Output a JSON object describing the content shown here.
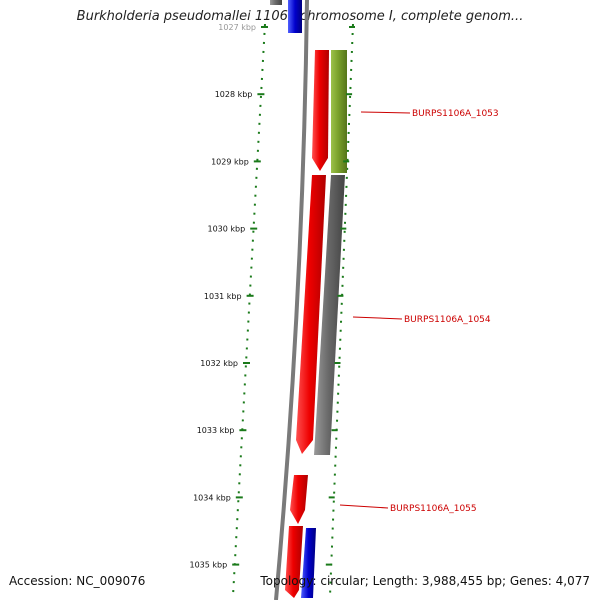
{
  "title": "Burkholderia pseudomallei 1106a chromosome I, complete genom...",
  "accession": "Accession: NC_009076",
  "summary": "Topology: circular; Length: 3,988,455 bp; Genes: 4,077",
  "ticks": [
    {
      "label": "1027 kbp",
      "kbp": 1027
    },
    {
      "label": "1028 kbp",
      "kbp": 1028
    },
    {
      "label": "1029 kbp",
      "kbp": 1029
    },
    {
      "label": "1030 kbp",
      "kbp": 1030
    },
    {
      "label": "1031 kbp",
      "kbp": 1031
    },
    {
      "label": "1032 kbp",
      "kbp": 1032
    },
    {
      "label": "1033 kbp",
      "kbp": 1033
    },
    {
      "label": "1034 kbp",
      "kbp": 1034
    },
    {
      "label": "1035 kbp",
      "kbp": 1035
    }
  ],
  "gene_labels": [
    {
      "text": "BURPS1106A_1053"
    },
    {
      "text": "BURPS1106A_1054"
    },
    {
      "text": "BURPS1106A_1055"
    }
  ],
  "colors": {
    "cds": "#ee0000",
    "gene_grey": "#666666",
    "gene_olive": "#7aa12b",
    "gene_blue": "#0000cc",
    "backbone": "#7a7a7a",
    "tick": "#1a7a1a",
    "label": "#cc0000"
  }
}
